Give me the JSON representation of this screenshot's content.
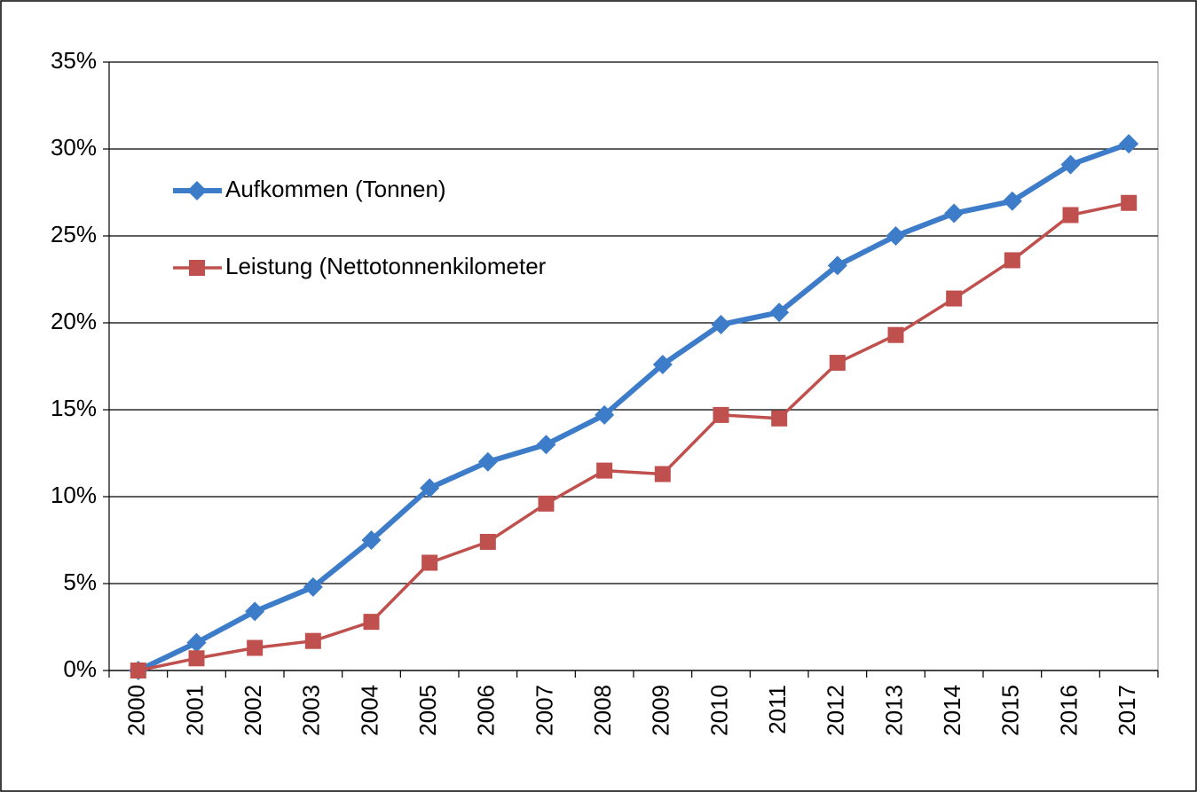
{
  "chart_data": {
    "type": "line",
    "categories": [
      "2000",
      "2001",
      "2002",
      "2003",
      "2004",
      "2005",
      "2006",
      "2007",
      "2008",
      "2009",
      "2010",
      "2011",
      "2012",
      "2013",
      "2014",
      "2015",
      "2016",
      "2017"
    ],
    "series": [
      {
        "name": "Aufkommen (Tonnen)",
        "color": "#3d7cc9",
        "marker": "diamond",
        "values": [
          0,
          1.6,
          3.4,
          4.8,
          7.5,
          10.5,
          12.0,
          13.0,
          14.7,
          17.6,
          19.9,
          20.6,
          23.3,
          25.0,
          26.3,
          27.0,
          29.1,
          30.3
        ]
      },
      {
        "name": "Leistung (Nettotonnenkilometer",
        "color": "#c0504d",
        "marker": "square",
        "values": [
          0,
          0.7,
          1.3,
          1.7,
          2.8,
          6.2,
          7.4,
          9.6,
          11.5,
          11.3,
          14.7,
          14.5,
          17.7,
          19.3,
          21.4,
          23.6,
          26.2,
          26.9
        ]
      }
    ],
    "ylim": [
      0,
      35
    ],
    "yticks": [
      {
        "value": 0,
        "label": "0%"
      },
      {
        "value": 5,
        "label": "5%"
      },
      {
        "value": 10,
        "label": "10%"
      },
      {
        "value": 15,
        "label": "15%"
      },
      {
        "value": 20,
        "label": "20%"
      },
      {
        "value": 25,
        "label": "25%"
      },
      {
        "value": 30,
        "label": "30%"
      },
      {
        "value": 35,
        "label": "35%"
      }
    ],
    "grid": true,
    "legend": "upper left"
  }
}
